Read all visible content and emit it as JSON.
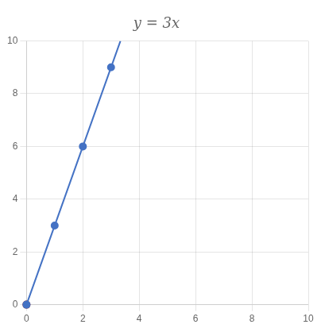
{
  "chart_data": {
    "type": "scatter",
    "title": "y = 3x",
    "series": [
      {
        "type": "line",
        "color": "#4472c4",
        "marker": "none",
        "x": [
          0,
          3.3333333333333335
        ],
        "values": [
          0,
          10
        ]
      },
      {
        "type": "scatter",
        "color": "#4472c4",
        "marker": "circle",
        "x": [
          0,
          1,
          2,
          3
        ],
        "values": [
          0,
          3,
          6,
          9
        ]
      },
      {
        "type": "scatter",
        "color": "#8b0000",
        "marker": "open_circle",
        "x": [
          0
        ],
        "values": [
          0
        ]
      }
    ],
    "xlim": [
      0,
      10
    ],
    "ylim": [
      0,
      10
    ],
    "xticks": [
      0,
      2,
      4,
      6,
      8,
      10
    ],
    "yticks": [
      0,
      2,
      4,
      6,
      8,
      10
    ],
    "grid": true
  }
}
